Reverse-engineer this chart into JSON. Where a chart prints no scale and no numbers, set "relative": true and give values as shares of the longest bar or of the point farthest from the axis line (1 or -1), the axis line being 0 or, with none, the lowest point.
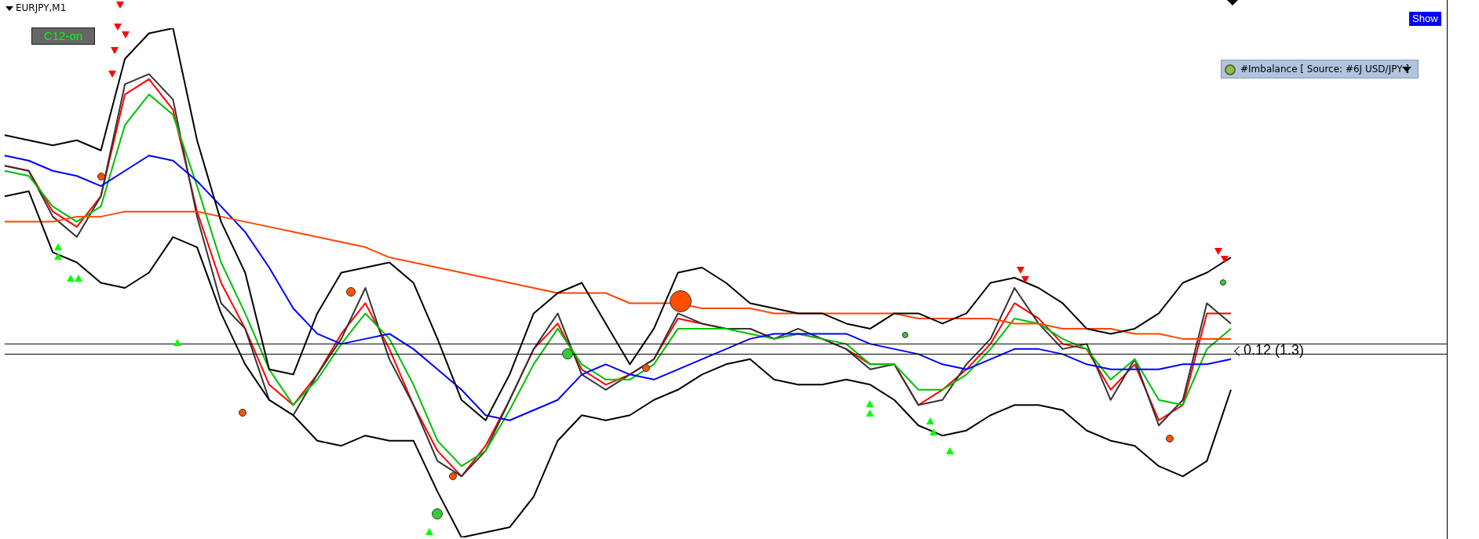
{
  "chart_data": {
    "type": "line",
    "title": "EURJPY,M1",
    "relative": true,
    "legend": false,
    "marker": "none",
    "categories": [
      null,
      null,
      null,
      null,
      null,
      null,
      null,
      null,
      null,
      null,
      null,
      null,
      null,
      null,
      null,
      null,
      null,
      null,
      null,
      null,
      null,
      null,
      null,
      null,
      null,
      null,
      null,
      null,
      null,
      null,
      null,
      null,
      null,
      null,
      null,
      null,
      null,
      null,
      null,
      null,
      null,
      null,
      null,
      null,
      null,
      null,
      null,
      null,
      null,
      null,
      null,
      null
    ],
    "series": [
      {
        "color": "#000000",
        "values": [
          0.79,
          0.78,
          0.77,
          0.78,
          0.76,
          0.94,
          0.99,
          1,
          0.78,
          0.62,
          0.52,
          0.33,
          0.32,
          0.44,
          0.52,
          0.53,
          0.54,
          0.5,
          0.39,
          0.27,
          0.23,
          0.32,
          0.44,
          0.48,
          0.5,
          0.42,
          0.34,
          0.41,
          0.52,
          0.53,
          0.5,
          0.46,
          0.45,
          0.44,
          0.44,
          0.42,
          0.41,
          0.44,
          0.44,
          0.42,
          0.44,
          0.5,
          0.51,
          0.49,
          0.46,
          0.41,
          0.4,
          0.41,
          0.44,
          0.5,
          0.52,
          0.55
        ]
      },
      {
        "color": "#000000",
        "values": [
          0.67,
          0.68,
          0.56,
          0.54,
          0.5,
          0.49,
          0.52,
          0.59,
          0.57,
          0.44,
          0.34,
          0.27,
          0.24,
          0.19,
          0.18,
          0.2,
          0.19,
          0.19,
          0.09,
          0,
          0.01,
          0.02,
          0.08,
          0.19,
          0.24,
          0.23,
          0.24,
          0.27,
          0.29,
          0.32,
          0.34,
          0.35,
          0.31,
          0.3,
          0.3,
          0.31,
          0.3,
          0.27,
          0.22,
          0.2,
          0.21,
          0.24,
          0.26,
          0.26,
          0.25,
          0.21,
          0.19,
          0.18,
          0.14,
          0.12,
          0.15,
          0.29
        ]
      },
      {
        "color": "#ff4500",
        "values": [
          0.62,
          0.62,
          0.62,
          0.63,
          0.63,
          0.64,
          0.64,
          0.64,
          0.64,
          0.63,
          0.62,
          0.61,
          0.6,
          0.59,
          0.58,
          0.57,
          0.55,
          0.54,
          0.53,
          0.52,
          0.51,
          0.5,
          0.49,
          0.48,
          0.48,
          0.48,
          0.46,
          0.46,
          0.46,
          0.45,
          0.45,
          0.45,
          0.44,
          0.44,
          0.44,
          0.44,
          0.44,
          0.44,
          0.43,
          0.43,
          0.43,
          0.43,
          0.42,
          0.42,
          0.41,
          0.41,
          0.41,
          0.4,
          0.4,
          0.39,
          0.39,
          0.39
        ]
      },
      {
        "color": "#0000ff",
        "values": [
          0.75,
          0.74,
          0.72,
          0.71,
          0.69,
          0.72,
          0.75,
          0.74,
          0.7,
          0.65,
          0.6,
          0.53,
          0.45,
          0.4,
          0.38,
          0.39,
          0.4,
          0.37,
          0.33,
          0.29,
          0.24,
          0.23,
          0.25,
          0.27,
          0.32,
          0.34,
          0.32,
          0.31,
          0.33,
          0.35,
          0.37,
          0.39,
          0.4,
          0.4,
          0.4,
          0.4,
          0.38,
          0.37,
          0.36,
          0.34,
          0.33,
          0.35,
          0.37,
          0.37,
          0.36,
          0.34,
          0.33,
          0.33,
          0.33,
          0.34,
          0.34,
          0.35
        ]
      },
      {
        "color": "#00c000",
        "values": [
          0.72,
          0.71,
          0.65,
          0.62,
          0.65,
          0.81,
          0.87,
          0.83,
          0.69,
          0.54,
          0.44,
          0.33,
          0.26,
          0.31,
          0.38,
          0.44,
          0.39,
          0.3,
          0.19,
          0.14,
          0.17,
          0.25,
          0.34,
          0.41,
          0.34,
          0.31,
          0.31,
          0.34,
          0.41,
          0.41,
          0.41,
          0.4,
          0.39,
          0.4,
          0.39,
          0.38,
          0.34,
          0.34,
          0.29,
          0.29,
          0.32,
          0.37,
          0.43,
          0.42,
          0.39,
          0.37,
          0.31,
          0.35,
          0.27,
          0.26,
          0.37,
          0.41
        ]
      },
      {
        "color": "#333333",
        "values": [
          0.73,
          0.72,
          0.63,
          0.59,
          0.67,
          0.89,
          0.91,
          0.86,
          0.63,
          0.46,
          0.41,
          0.27,
          0.24,
          0.32,
          0.39,
          0.49,
          0.35,
          0.26,
          0.15,
          0.12,
          0.17,
          0.27,
          0.37,
          0.44,
          0.32,
          0.29,
          0.32,
          0.35,
          0.44,
          0.42,
          0.41,
          0.41,
          0.39,
          0.41,
          0.39,
          0.37,
          0.33,
          0.34,
          0.26,
          0.27,
          0.34,
          0.39,
          0.49,
          0.42,
          0.37,
          0.38,
          0.27,
          0.35,
          0.22,
          0.27,
          0.46,
          0.42
        ]
      },
      {
        "color": "#ff0000",
        "values": [
          0.73,
          0.72,
          0.64,
          0.61,
          0.67,
          0.87,
          0.9,
          0.84,
          0.64,
          0.5,
          0.41,
          0.3,
          0.26,
          0.32,
          0.4,
          0.46,
          0.37,
          0.26,
          0.17,
          0.12,
          0.18,
          0.27,
          0.37,
          0.42,
          0.33,
          0.3,
          0.32,
          0.35,
          0.43,
          0.42,
          0.41,
          0.41,
          0.39,
          0.4,
          0.39,
          0.37,
          0.34,
          0.34,
          0.26,
          0.29,
          0.33,
          0.38,
          0.46,
          0.43,
          0.38,
          0.37,
          0.29,
          0.34,
          0.23,
          0.26,
          0.44,
          0.44
        ]
      }
    ],
    "ref_lines": [
      {
        "axis": "y",
        "value": 0.38,
        "color": "#000000"
      },
      {
        "axis": "y",
        "value": 0.36,
        "color": "#000000"
      }
    ],
    "annotations": [
      "C12-on",
      "Show",
      "#Imbalance [ Source: #6J USD/JPY ]",
      "0.12 (1.3)"
    ]
  }
}
